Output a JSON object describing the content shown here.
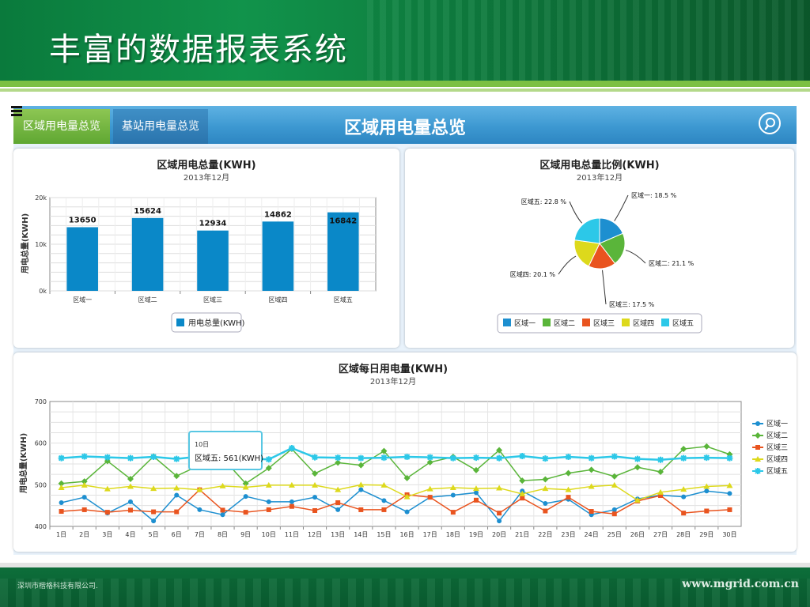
{
  "slide": {
    "title": "丰富的数据报表系统",
    "footer_company": "深圳市楷格科技有限公司.",
    "footer_url": "www.mgrid.com.cn"
  },
  "app": {
    "tabs": [
      {
        "label": "区域用电量总览",
        "active": true
      },
      {
        "label": "基站用电量总览",
        "active": false
      }
    ],
    "header_title": "区域用电量总览",
    "search_icon": "search-icon",
    "menu_icon": "menu-icon"
  },
  "colors": {
    "bar": "#0a88c8",
    "series": [
      "#1d8fd0",
      "#5ab53a",
      "#e9541f",
      "#ddd91c",
      "#2cc8e8"
    ]
  },
  "chart_data": [
    {
      "type": "bar",
      "title": "区域用电总量(KWH)",
      "subtitle": "2013年12月",
      "ylabel": "用电总量(KWH)",
      "categories": [
        "区域一",
        "区域二",
        "区域三",
        "区域四",
        "区域五"
      ],
      "values": [
        13650,
        15624,
        12934,
        14862,
        16842
      ],
      "yticks": [
        "0k",
        "10k",
        "20k"
      ],
      "ylim": [
        0,
        20000
      ],
      "legend": [
        "用电总量(KWH)"
      ],
      "legend_position": "bottom",
      "grid": true
    },
    {
      "type": "pie",
      "title": "区域用电总量比例(KWH)",
      "subtitle": "2013年12月",
      "slices": [
        {
          "name": "区域一",
          "percent": 18.5,
          "label": "区域一: 18.5 %"
        },
        {
          "name": "区域二",
          "percent": 21.1,
          "label": "区域二: 21.1 %"
        },
        {
          "name": "区域三",
          "percent": 17.5,
          "label": "区域三: 17.5 %"
        },
        {
          "name": "区域四",
          "percent": 20.1,
          "label": "区域四: 20.1 %"
        },
        {
          "name": "区域五",
          "percent": 22.8,
          "label": "区域五: 22.8 %"
        }
      ],
      "legend": [
        "区域一",
        "区域二",
        "区域三",
        "区域四",
        "区域五"
      ],
      "legend_position": "bottom"
    },
    {
      "type": "line",
      "title": "区域每日用电量(KWH)",
      "subtitle": "2013年12月",
      "ylabel": "用电总量(KWH)",
      "x": [
        "1日",
        "2日",
        "3日",
        "4日",
        "5日",
        "6日",
        "7日",
        "8日",
        "9日",
        "10日",
        "11日",
        "12日",
        "13日",
        "14日",
        "15日",
        "16日",
        "17日",
        "18日",
        "19日",
        "20日",
        "21日",
        "22日",
        "23日",
        "24日",
        "25日",
        "26日",
        "27日",
        "28日",
        "29日",
        "30日"
      ],
      "yticks": [
        "400",
        "500",
        "600",
        "700"
      ],
      "ylim": [
        400,
        700
      ],
      "grid": true,
      "legend_position": "right",
      "series": [
        {
          "name": "区域一",
          "values": [
            457,
            470,
            432,
            459,
            413,
            475,
            440,
            428,
            472,
            459,
            459,
            470,
            440,
            488,
            462,
            435,
            470,
            475,
            481,
            413,
            485,
            455,
            465,
            428,
            440,
            466,
            475,
            471,
            485,
            479
          ]
        },
        {
          "name": "区域二",
          "values": [
            503,
            508,
            557,
            514,
            568,
            521,
            547,
            564,
            503,
            540,
            586,
            527,
            553,
            547,
            581,
            516,
            554,
            567,
            535,
            583,
            510,
            513,
            528,
            536,
            520,
            542,
            531,
            586,
            592,
            573
          ]
        },
        {
          "name": "区域三",
          "values": [
            436,
            440,
            434,
            439,
            435,
            435,
            488,
            439,
            434,
            440,
            448,
            438,
            457,
            440,
            440,
            476,
            470,
            434,
            463,
            432,
            468,
            437,
            470,
            436,
            430,
            461,
            474,
            432,
            437,
            440
          ]
        },
        {
          "name": "区域四",
          "values": [
            493,
            499,
            490,
            496,
            491,
            492,
            488,
            497,
            494,
            499,
            499,
            499,
            488,
            500,
            499,
            471,
            490,
            493,
            491,
            492,
            478,
            491,
            488,
            496,
            499,
            463,
            482,
            489,
            496,
            498
          ]
        },
        {
          "name": "区域五",
          "values": [
            564,
            568,
            566,
            564,
            567,
            562,
            568,
            568,
            563,
            561,
            588,
            566,
            565,
            564,
            565,
            567,
            566,
            564,
            565,
            564,
            569,
            563,
            567,
            564,
            568,
            562,
            560,
            564,
            565,
            564
          ]
        }
      ],
      "tooltip": {
        "day": "10日",
        "series": "区域五",
        "text": "区域五: 561(KWH)"
      }
    }
  ]
}
